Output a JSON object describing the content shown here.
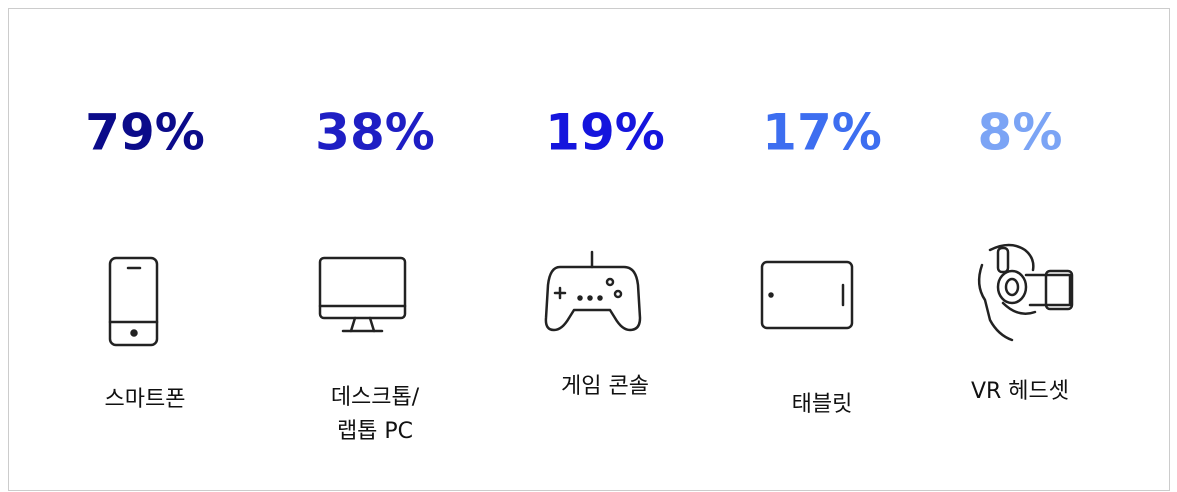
{
  "items": [
    {
      "percent": "79%",
      "color": "#0b0b8a",
      "label": [
        "스마트폰"
      ]
    },
    {
      "percent": "38%",
      "color": "#1e1ec4",
      "label": [
        "데스크톱/",
        "랩톱 PC"
      ]
    },
    {
      "percent": "19%",
      "color": "#1515dd",
      "label": [
        "게임 콘솔"
      ]
    },
    {
      "percent": "17%",
      "color": "#3d6ef0",
      "label": [
        "태블릿"
      ]
    },
    {
      "percent": "8%",
      "color": "#7ba4f5",
      "label": [
        "VR 헤드셋"
      ]
    }
  ]
}
